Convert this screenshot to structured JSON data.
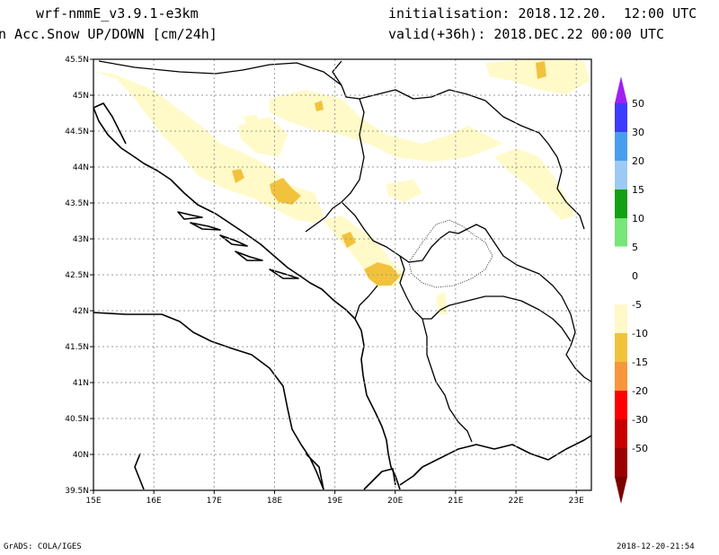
{
  "header": {
    "model": "wrf-nmmE_v3.9.1-e3km",
    "field": "n Acc.Snow UP/DOWN [cm/24h]",
    "init": "initialisation: 2018.12.20.  12:00 UTC",
    "valid": "valid(+36h): 2018.DEC.22 00:00 UTC"
  },
  "map": {
    "lon_range": [
      15,
      23.25
    ],
    "lat_range": [
      39.5,
      45.5
    ],
    "lat_ticks": [
      "45.5N",
      "45N",
      "44.5N",
      "44N",
      "43.5N",
      "43N",
      "42.5N",
      "42N",
      "41.5N",
      "41N",
      "40.5N",
      "40N",
      "39.5N"
    ],
    "lon_ticks": [
      "15E",
      "16E",
      "17E",
      "18E",
      "19E",
      "20E",
      "21E",
      "22E",
      "23E"
    ],
    "grid": true
  },
  "colorbar": {
    "labels": [
      "50",
      "30",
      "20",
      "15",
      "10",
      "5",
      "0",
      "-5",
      "-10",
      "-15",
      "-20",
      "-30",
      "-50"
    ],
    "colors": [
      "#a020f0",
      "#3c3cff",
      "#4a9ef0",
      "#9ccaf5",
      "#14a014",
      "#78e678",
      "#ffffff",
      "#ffffff",
      "#fff8c8",
      "#f2c23c",
      "#f7963c",
      "#ff0000",
      "#c80000",
      "#9b0000",
      "#7a0000"
    ]
  },
  "footer": {
    "left": "GrADS: COLA/IGES",
    "right": "2018-12-20-21:54"
  }
}
